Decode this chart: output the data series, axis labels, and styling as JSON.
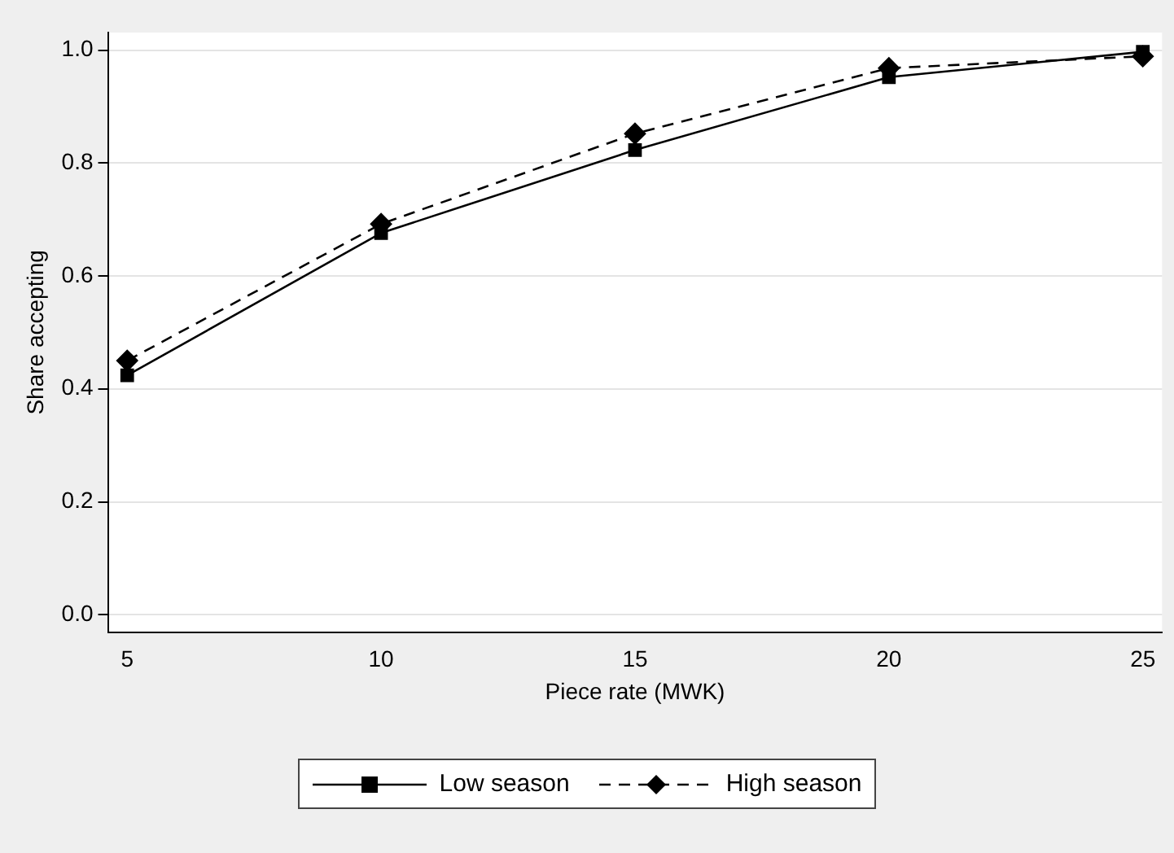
{
  "chart_data": {
    "type": "line",
    "xlabel": "Piece rate (MWK)",
    "ylabel": "Share accepting",
    "x": [
      5,
      10,
      15,
      20,
      25
    ],
    "series": [
      {
        "name": "Low season",
        "color": "#000000",
        "marker": "square",
        "line_style": "solid",
        "values": [
          0.424,
          0.676,
          0.823,
          0.952,
          0.997
        ]
      },
      {
        "name": "High season",
        "color": "#000000",
        "marker": "diamond",
        "line_style": "dashed",
        "values": [
          0.45,
          0.692,
          0.852,
          0.968,
          0.989
        ]
      }
    ],
    "xlim": [
      4.62,
      25.38
    ],
    "xticks": [
      5,
      10,
      15,
      20,
      25
    ],
    "ylim": [
      -0.031,
      1.031
    ],
    "yticks": [
      {
        "value": 0,
        "label": "0.0"
      },
      {
        "value": 0.2,
        "label": "0.2"
      },
      {
        "value": 0.4,
        "label": "0.4"
      },
      {
        "value": 0.6,
        "label": "0.6"
      },
      {
        "value": 0.8,
        "label": "0.8"
      },
      {
        "value": 1,
        "label": "1.0"
      }
    ],
    "grid": "y",
    "legend": "bottom"
  }
}
